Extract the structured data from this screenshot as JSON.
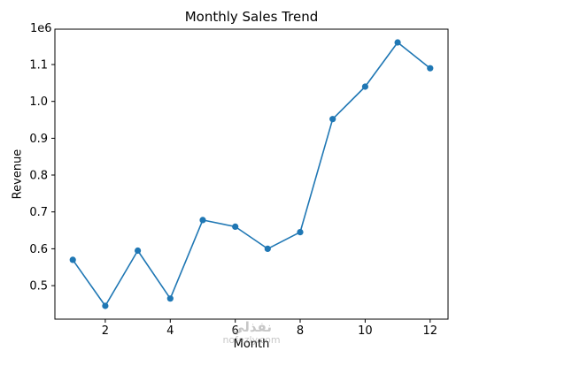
{
  "chart_data": {
    "type": "line",
    "title": "Monthly Sales Trend",
    "xlabel": "Month",
    "ylabel": "Revenue",
    "y_offset_label": "1e6",
    "x": [
      1,
      2,
      3,
      4,
      5,
      6,
      7,
      8,
      9,
      10,
      11,
      12
    ],
    "values": [
      570000,
      445000,
      595000,
      465000,
      678000,
      660000,
      600000,
      645000,
      952000,
      1040000,
      1160000,
      1090000
    ],
    "xlim": [
      0.45,
      12.55
    ],
    "ylim": [
      409000,
      1196000
    ],
    "xticks": [
      2,
      4,
      6,
      8,
      10,
      12
    ],
    "xtick_labels": [
      "2",
      "4",
      "6",
      "8",
      "10",
      "12"
    ],
    "yticks": [
      500000,
      600000,
      700000,
      800000,
      900000,
      1000000,
      1100000
    ],
    "ytick_labels": [
      "0.5",
      "0.6",
      "0.7",
      "0.8",
      "0.9",
      "1.0",
      "1.1"
    ],
    "line_color": "#1f77b4",
    "marker": "o",
    "grid": false,
    "legend_position": null
  },
  "watermark": {
    "arabic": "نفذلي",
    "domain": "nofezly.com"
  }
}
